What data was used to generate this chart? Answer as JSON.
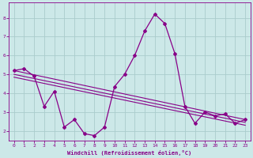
{
  "xlabel": "Windchill (Refroidissement éolien,°C)",
  "bg_color": "#cce8e8",
  "line_color": "#880088",
  "grid_color": "#aacccc",
  "x_data": [
    0,
    1,
    2,
    3,
    4,
    5,
    6,
    7,
    8,
    9,
    10,
    11,
    12,
    13,
    14,
    15,
    16,
    17,
    18,
    19,
    20,
    21,
    22,
    23
  ],
  "y_main": [
    5.2,
    5.3,
    4.9,
    3.3,
    4.1,
    2.2,
    2.6,
    1.85,
    1.75,
    2.2,
    4.35,
    5.0,
    6.0,
    7.3,
    8.2,
    7.7,
    6.1,
    3.3,
    2.4,
    3.0,
    2.8,
    2.9,
    2.4,
    2.6
  ],
  "line1_start": 5.2,
  "line1_end": 2.6,
  "line2_start": 5.0,
  "line2_end": 2.45,
  "line3_start": 4.85,
  "line3_end": 2.3,
  "ylim": [
    1.5,
    8.8
  ],
  "xlim": [
    -0.5,
    23.5
  ],
  "yticks": [
    2,
    3,
    4,
    5,
    6,
    7,
    8
  ],
  "xticks": [
    0,
    1,
    2,
    3,
    4,
    5,
    6,
    7,
    8,
    9,
    10,
    11,
    12,
    13,
    14,
    15,
    16,
    17,
    18,
    19,
    20,
    21,
    22,
    23
  ]
}
